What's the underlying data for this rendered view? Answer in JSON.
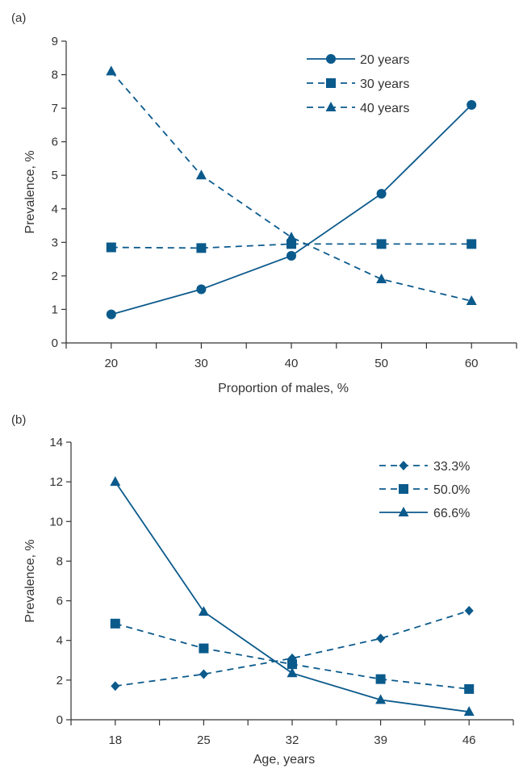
{
  "chart_data": [
    {
      "panel_label": "(a)",
      "type": "line",
      "xlabel": "Proportion of males, %",
      "ylabel": "Prevalence, %",
      "x": [
        20,
        30,
        40,
        50,
        60
      ],
      "xticks": [
        20,
        30,
        40,
        50,
        60
      ],
      "xlim": [
        15,
        65
      ],
      "ylim": [
        0,
        9
      ],
      "yticks": [
        0,
        1,
        2,
        3,
        4,
        5,
        6,
        7,
        8,
        9
      ],
      "grid": false,
      "legend_position": "top-right",
      "series_color": "#0b5a8c",
      "series": [
        {
          "name": "20 years",
          "marker": "circle",
          "dash": "solid",
          "values": [
            0.85,
            1.6,
            2.6,
            4.45,
            7.1
          ]
        },
        {
          "name": "30 years",
          "marker": "square",
          "dash": "dashed",
          "values": [
            2.85,
            2.83,
            2.95,
            2.95,
            2.95
          ]
        },
        {
          "name": "40 years",
          "marker": "triangle",
          "dash": "dashed",
          "values": [
            8.1,
            5.0,
            3.15,
            1.9,
            1.25
          ]
        }
      ]
    },
    {
      "panel_label": "(b)",
      "type": "line",
      "xlabel": "Age, years",
      "ylabel": "Prevalence, %",
      "x": [
        18,
        25,
        32,
        39,
        46
      ],
      "xticks": [
        18,
        25,
        32,
        39,
        46
      ],
      "xlim": [
        14.5,
        49.5
      ],
      "ylim": [
        0,
        14
      ],
      "yticks": [
        0,
        2,
        4,
        6,
        8,
        10,
        12,
        14
      ],
      "grid": false,
      "legend_position": "top-right",
      "series_color": "#0b5a8c",
      "series": [
        {
          "name": "33.3%",
          "marker": "diamond",
          "dash": "dashed",
          "values": [
            1.7,
            2.3,
            3.1,
            4.1,
            5.5
          ]
        },
        {
          "name": "50.0%",
          "marker": "square",
          "dash": "dashed",
          "values": [
            4.85,
            3.6,
            2.8,
            2.05,
            1.55
          ]
        },
        {
          "name": "66.6%",
          "marker": "triangle",
          "dash": "solid",
          "values": [
            12.0,
            5.45,
            2.35,
            1.0,
            0.4
          ]
        }
      ]
    }
  ]
}
